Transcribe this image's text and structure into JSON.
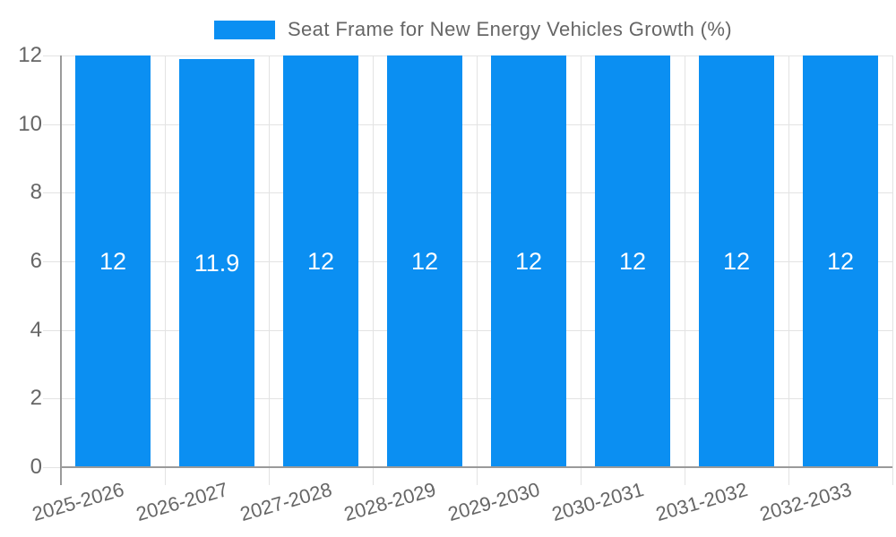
{
  "legend": {
    "label": "Seat Frame for New Energy Vehicles Growth (%)"
  },
  "chart_data": {
    "type": "bar",
    "title": "Seat Frame for New Energy Vehicles Growth (%)",
    "categories": [
      "2025-2026",
      "2026-2027",
      "2027-2028",
      "2028-2029",
      "2029-2030",
      "2030-2031",
      "2031-2032",
      "2032-2033"
    ],
    "series": [
      {
        "name": "Seat Frame for New Energy Vehicles Growth (%)",
        "values": [
          12,
          11.9,
          12,
          12,
          12,
          12,
          12,
          12
        ]
      }
    ],
    "bar_value_labels": [
      "12",
      "11.9",
      "12",
      "12",
      "12",
      "12",
      "12",
      "12"
    ],
    "xlabel": "",
    "ylabel": "",
    "ylim": [
      0,
      12
    ],
    "yticks": [
      0,
      2,
      4,
      6,
      8,
      10,
      12
    ],
    "grid": true,
    "legend_position": "top",
    "x_tick_rotation_deg": -16,
    "colors": {
      "bar": "#0b8ff2",
      "axis_line": "#9a9a9a",
      "grid_line": "#e3e3e3",
      "tick_label": "#666666",
      "legend_text": "#666666",
      "value_label": "#ffffff",
      "background": "#ffffff"
    }
  }
}
